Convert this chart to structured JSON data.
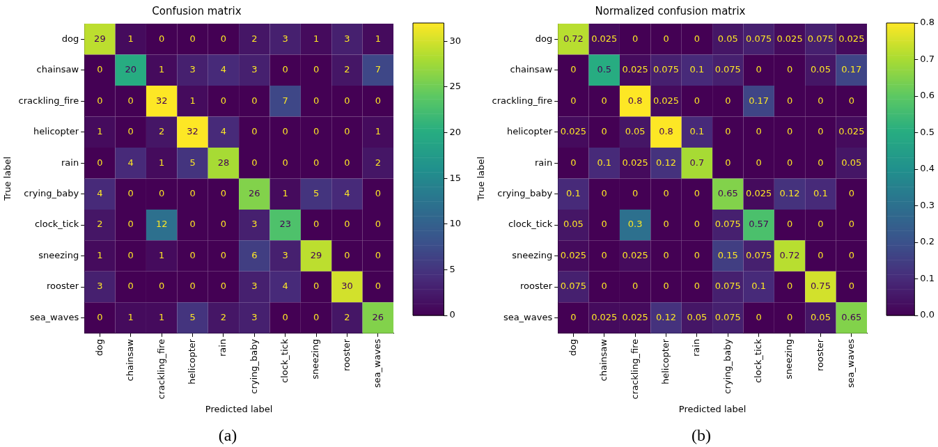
{
  "chart_data": [
    {
      "type": "heatmap",
      "title": "Confusion matrix",
      "xlabel": "Predicted label",
      "ylabel": "True label",
      "annotations": [
        "(a)"
      ],
      "data_labels": true,
      "categories": [
        "dog",
        "chainsaw",
        "crackling_fire",
        "helicopter",
        "rain",
        "crying_baby",
        "clock_tick",
        "sneezing",
        "rooster",
        "sea_waves"
      ],
      "y_categories": [
        "dog",
        "chainsaw",
        "crackling_fire",
        "helicopter",
        "rain",
        "crying_baby",
        "clock_tick",
        "sneezing",
        "rooster",
        "sea_waves"
      ],
      "clim": [
        0,
        32
      ],
      "cticks": [
        0,
        5,
        10,
        15,
        20,
        25,
        30
      ],
      "cells": [
        [
          29,
          1,
          0,
          0,
          0,
          2,
          3,
          1,
          3,
          1
        ],
        [
          0,
          20,
          1,
          3,
          4,
          3,
          0,
          0,
          2,
          7
        ],
        [
          0,
          0,
          32,
          1,
          0,
          0,
          7,
          0,
          0,
          0
        ],
        [
          1,
          0,
          2,
          32,
          4,
          0,
          0,
          0,
          0,
          1
        ],
        [
          0,
          4,
          1,
          5,
          28,
          0,
          0,
          0,
          0,
          2
        ],
        [
          4,
          0,
          0,
          0,
          0,
          26,
          1,
          5,
          4,
          0
        ],
        [
          2,
          0,
          12,
          0,
          0,
          3,
          23,
          0,
          0,
          0
        ],
        [
          1,
          0,
          1,
          0,
          0,
          6,
          3,
          29,
          0,
          0
        ],
        [
          3,
          0,
          0,
          0,
          0,
          3,
          4,
          0,
          30,
          0
        ],
        [
          0,
          1,
          1,
          5,
          2,
          3,
          0,
          0,
          2,
          26
        ]
      ]
    },
    {
      "type": "heatmap",
      "title": "Normalized confusion matrix",
      "xlabel": "Predicted label",
      "ylabel": "True label",
      "annotations": [
        "(b)"
      ],
      "data_labels": true,
      "categories": [
        "dog",
        "chainsaw",
        "crackling_fire",
        "helicopter",
        "rain",
        "crying_baby",
        "clock_tick",
        "sneezing",
        "rooster",
        "sea_waves"
      ],
      "y_categories": [
        "dog",
        "chainsaw",
        "crackling_fire",
        "helicopter",
        "rain",
        "crying_baby",
        "clock_tick",
        "sneezing",
        "rooster",
        "sea_waves"
      ],
      "clim": [
        0,
        0.8
      ],
      "cticks": [
        {
          "value": 0,
          "label": "0.0"
        },
        0.1,
        0.2,
        0.3,
        0.4,
        0.5,
        0.6,
        0.7,
        0.8
      ],
      "cells": [
        [
          0.72,
          0.025,
          0,
          0,
          0,
          0.05,
          0.075,
          0.025,
          0.075,
          0.025
        ],
        [
          0,
          0.5,
          0.025,
          0.075,
          0.1,
          0.075,
          0,
          0,
          0.05,
          0.17
        ],
        [
          0,
          0,
          0.8,
          0.025,
          0,
          0,
          0.17,
          0,
          0,
          0
        ],
        [
          0.025,
          0,
          0.05,
          0.8,
          0.1,
          0,
          0,
          0,
          0,
          0.025
        ],
        [
          0,
          0.1,
          0.025,
          0.12,
          0.7,
          0,
          0,
          0,
          0,
          0.05
        ],
        [
          0.1,
          0,
          0,
          0,
          0,
          0.65,
          0.025,
          0.12,
          0.1,
          0
        ],
        [
          0.05,
          0,
          0.3,
          0,
          0,
          0.075,
          0.57,
          0,
          0,
          0
        ],
        [
          0.025,
          0,
          0.025,
          0,
          0,
          0.15,
          0.075,
          0.72,
          0,
          0
        ],
        [
          0.075,
          0,
          0,
          0,
          0,
          0.075,
          0.1,
          0,
          0.75,
          0
        ],
        [
          0,
          0.025,
          0.025,
          0.12,
          0.05,
          0.075,
          0,
          0,
          0.05,
          0.65
        ]
      ]
    }
  ]
}
